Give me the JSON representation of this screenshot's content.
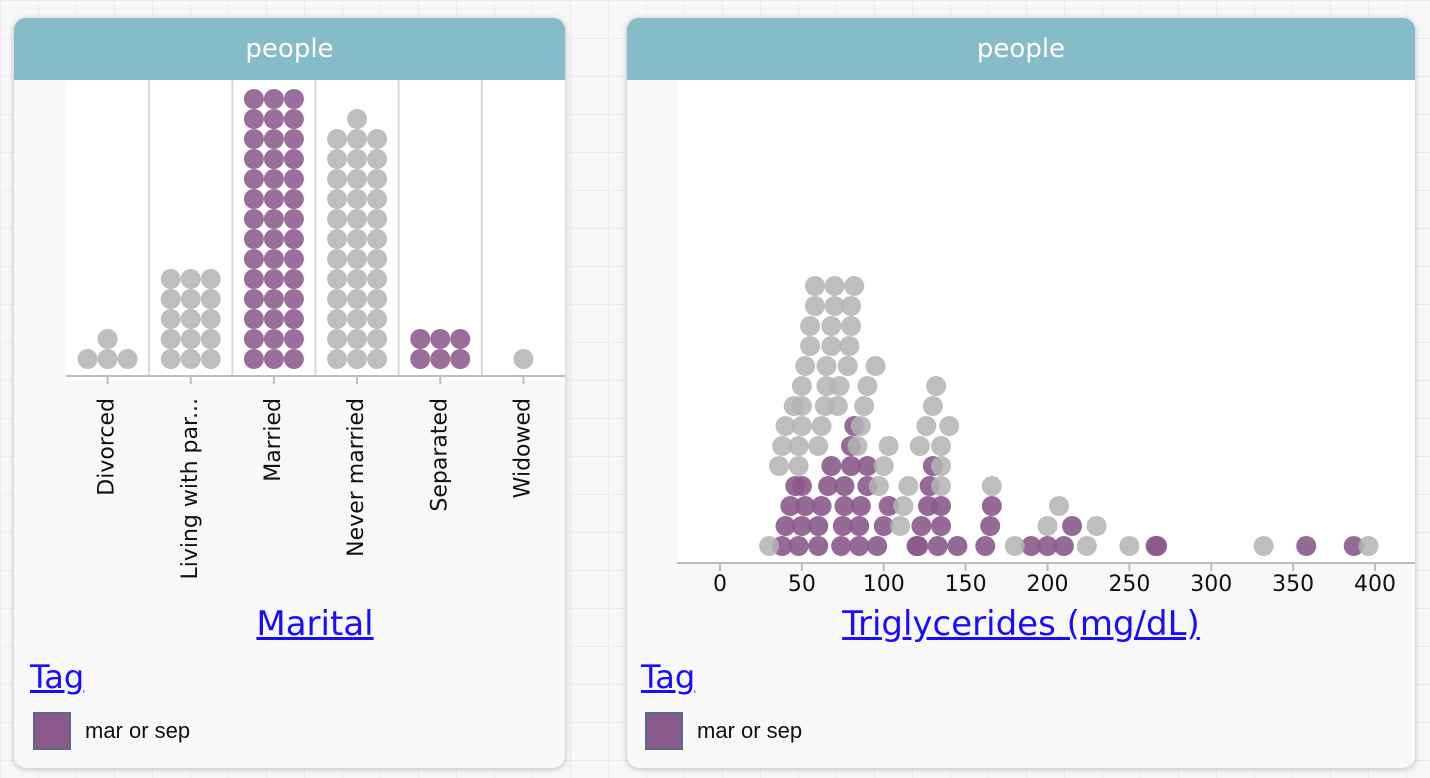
{
  "colors": {
    "header": "#85bcc8",
    "tag": "#8b5a8c",
    "untagged": "#b3b3b3",
    "link": "#1a0dff"
  },
  "legend": {
    "title": "Tag",
    "label": "mar or sep"
  },
  "chart_data": [
    {
      "type": "dot plot",
      "title": "people",
      "xlabel": "Marital",
      "categories": [
        "Divorced",
        "Living with par...",
        "Married",
        "Never married",
        "Separated",
        "Widowed"
      ],
      "series": [
        {
          "name": "mar or sep",
          "values": [
            0,
            0,
            42,
            0,
            6,
            0
          ]
        },
        {
          "values": [
            4,
            15,
            0,
            37,
            0,
            1
          ]
        }
      ]
    },
    {
      "type": "dot plot",
      "title": "people",
      "xlabel": "Triglycerides (mg/dL)",
      "xlim": [
        -25,
        420
      ],
      "xticks": [
        0,
        50,
        100,
        150,
        200,
        250,
        300,
        350,
        400
      ],
      "series": [
        {
          "name": "mar or sep",
          "x": [
            38,
            40,
            43,
            46,
            48,
            50,
            52,
            50,
            60,
            60,
            62,
            66,
            68,
            74,
            75,
            76,
            76,
            80,
            80,
            82,
            85,
            85,
            86,
            90,
            90,
            96,
            100,
            103,
            120,
            121,
            123,
            127,
            128,
            130,
            133,
            135,
            135,
            145,
            162,
            165,
            166,
            190,
            200,
            210,
            215,
            266,
            267,
            358,
            387
          ]
        },
        {
          "x": [
            30,
            36,
            38,
            40,
            45,
            48,
            48,
            50,
            50,
            50,
            52,
            55,
            55,
            58,
            58,
            60,
            62,
            64,
            65,
            65,
            68,
            68,
            70,
            70,
            72,
            73,
            78,
            79,
            80,
            80,
            82,
            84,
            86,
            88,
            90,
            95,
            97,
            100,
            103,
            110,
            112,
            115,
            122,
            126,
            130,
            132,
            135,
            135,
            135,
            140,
            166,
            180,
            200,
            207,
            224,
            230,
            250,
            332,
            396
          ]
        }
      ]
    }
  ]
}
